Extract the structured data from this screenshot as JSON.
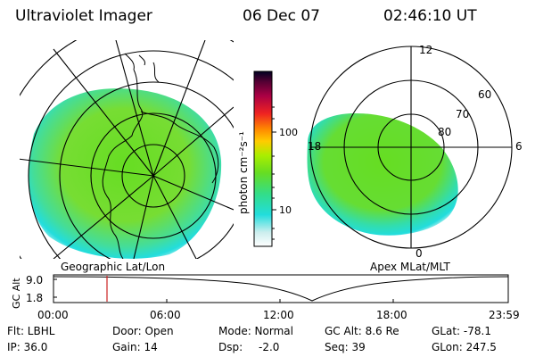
{
  "header": {
    "instrument": "Ultraviolet Imager",
    "date": "06 Dec 07",
    "time": "02:46:10 UT"
  },
  "colorbar": {
    "tick_labels": [
      "100",
      "10"
    ],
    "unit_label": "photon cm⁻²s⁻¹"
  },
  "left_map": {
    "label": "Geographic Lat/Lon"
  },
  "right_map": {
    "label": "Apex MLat/MLT",
    "mlt_labels": [
      "12",
      "18",
      "6",
      "0"
    ],
    "lat_labels": [
      "60",
      "70",
      "80"
    ]
  },
  "gc_alt_plot": {
    "ylabel": "GC Alt",
    "yticks": [
      "9.0",
      "1.8"
    ],
    "xticks": [
      "00:00",
      "06:00",
      "12:00",
      "18:00",
      "23:59"
    ]
  },
  "info": {
    "flt": "Flt: LBHL",
    "ip": "IP: 36.0",
    "door": "Door: Open",
    "gain": "Gain: 14",
    "mode": "Mode: Normal",
    "dsp_label": "Dsp:",
    "dsp_value": "-2.0",
    "gc_alt": "GC Alt: 8.6 Re",
    "seq": "Seq: 39",
    "glat": "GLat: -78.1",
    "glon": "GLon: 247.5"
  },
  "colors": {
    "aurora_green": "#66dd22",
    "aurora_cyan": "#22dddd",
    "marker_red": "#cc2222"
  }
}
